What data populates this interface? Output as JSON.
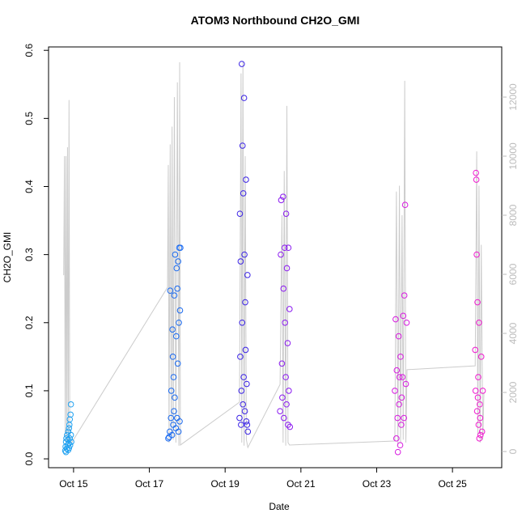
{
  "chart_data": {
    "type": "scatter",
    "title": "ATOM3 Northbound CH2O_GMI",
    "x_label": "Date",
    "y_label": "CH2O_GMI",
    "xlim": [
      14.34,
      26.3
    ],
    "ylim": [
      -0.013,
      0.605
    ],
    "y2lim": [
      -548,
      13698
    ],
    "xticks": [
      {
        "value": 15,
        "label": "Oct 15"
      },
      {
        "value": 17,
        "label": "Oct 17"
      },
      {
        "value": 19,
        "label": "Oct 19"
      },
      {
        "value": 21,
        "label": "Oct 21"
      },
      {
        "value": 23,
        "label": "Oct 23"
      },
      {
        "value": 25,
        "label": "Oct 25"
      }
    ],
    "yticks": [
      {
        "value": 0,
        "label": "0.0"
      },
      0.1,
      0.2,
      0.3,
      0.4,
      0.5,
      0.6
    ],
    "y2ticks": [
      0,
      2000,
      4000,
      6000,
      8000,
      10000,
      12000
    ],
    "y2color": "#bbbbbb",
    "series": [
      {
        "type": "line",
        "axis": "y2",
        "color": "#cccccc",
        "x": [
          14.74,
          14.76,
          14.78,
          14.8,
          14.82,
          14.84,
          14.86,
          14.88,
          14.9,
          14.95,
          17.48,
          17.5,
          17.52,
          17.55,
          17.58,
          17.6,
          17.63,
          17.66,
          17.7,
          17.74,
          17.78,
          17.8,
          17.82,
          19.38,
          19.42,
          19.44,
          19.47,
          19.5,
          19.53,
          19.56,
          19.6,
          20.45,
          20.5,
          20.53,
          20.56,
          20.6,
          20.63,
          20.66,
          20.7,
          23.48,
          23.52,
          23.56,
          23.6,
          23.63,
          23.67,
          23.7,
          23.74,
          23.77,
          23.8,
          25.6,
          25.64,
          25.67,
          25.7,
          25.73,
          25.76,
          25.8,
          25.83
        ],
        "values": [
          5970,
          10000,
          500,
          10000,
          300,
          10300,
          200,
          11900,
          400,
          300,
          5560,
          9700,
          300,
          10400,
          500,
          11000,
          400,
          12000,
          300,
          12500,
          200,
          13180,
          220,
          1670,
          12800,
          300,
          13200,
          200,
          10000,
          400,
          137,
          2270,
          8000,
          300,
          9500,
          200,
          11700,
          300,
          220,
          356,
          8800,
          200,
          9000,
          300,
          8000,
          400,
          12550,
          300,
          2770,
          2900,
          10160,
          500,
          9000,
          300,
          7000,
          400,
          2000
        ]
      },
      {
        "color": "#1ea0f0",
        "x": [
          14.78,
          14.79,
          14.8,
          14.8,
          14.81,
          14.82,
          14.83,
          14.84,
          14.85,
          14.86,
          14.86,
          14.87,
          14.88,
          14.88,
          14.89,
          14.9,
          14.9,
          14.91,
          14.92,
          14.93,
          14.93,
          14.94
        ],
        "values": [
          0.012,
          0.018,
          0.025,
          0.01,
          0.03,
          0.015,
          0.035,
          0.02,
          0.028,
          0.013,
          0.04,
          0.022,
          0.045,
          0.016,
          0.05,
          0.03,
          0.058,
          0.02,
          0.065,
          0.035,
          0.08,
          0.025
        ]
      },
      {
        "color": "#1a6af0",
        "x": [
          17.5,
          17.52,
          17.54,
          17.55,
          17.57,
          17.58,
          17.6,
          17.61,
          17.62,
          17.63,
          17.64,
          17.65,
          17.66,
          17.67,
          17.68,
          17.7,
          17.71,
          17.72,
          17.73,
          17.74,
          17.75,
          17.76,
          17.77,
          17.78,
          17.79,
          17.8,
          17.81,
          17.82
        ],
        "values": [
          0.03,
          0.032,
          0.04,
          0.247,
          0.06,
          0.1,
          0.035,
          0.19,
          0.15,
          0.05,
          0.12,
          0.07,
          0.24,
          0.09,
          0.3,
          0.045,
          0.18,
          0.28,
          0.06,
          0.25,
          0.14,
          0.29,
          0.04,
          0.2,
          0.31,
          0.055,
          0.218,
          0.31
        ]
      },
      {
        "color": "#3b23e6",
        "x": [
          19.38,
          19.39,
          19.4,
          19.41,
          19.42,
          19.43,
          19.44,
          19.45,
          19.46,
          19.47,
          19.48,
          19.49,
          19.5,
          19.51,
          19.52,
          19.53,
          19.54,
          19.55,
          19.56,
          19.57,
          19.58,
          19.59,
          19.6
        ],
        "values": [
          0.06,
          0.36,
          0.15,
          0.29,
          0.05,
          0.1,
          0.58,
          0.2,
          0.46,
          0.08,
          0.39,
          0.12,
          0.53,
          0.3,
          0.07,
          0.23,
          0.16,
          0.41,
          0.055,
          0.11,
          0.05,
          0.27,
          0.04
        ]
      },
      {
        "color": "#8b1af0",
        "x": [
          20.45,
          20.47,
          20.48,
          20.5,
          20.51,
          20.53,
          20.54,
          20.55,
          20.57,
          20.58,
          20.6,
          20.61,
          20.62,
          20.63,
          20.65,
          20.66,
          20.67,
          20.68,
          20.7,
          20.71
        ],
        "values": [
          0.07,
          0.3,
          0.38,
          0.14,
          0.09,
          0.385,
          0.25,
          0.06,
          0.31,
          0.2,
          0.12,
          0.36,
          0.08,
          0.28,
          0.17,
          0.05,
          0.31,
          0.1,
          0.22,
          0.047
        ]
      },
      {
        "color": "#d81be0",
        "x": [
          23.48,
          23.5,
          23.52,
          23.53,
          23.55,
          23.56,
          23.58,
          23.59,
          23.6,
          23.62,
          23.63,
          23.65,
          23.66,
          23.68,
          23.7,
          23.72,
          23.73,
          23.75,
          23.77,
          23.79
        ],
        "values": [
          0.1,
          0.205,
          0.03,
          0.13,
          0.06,
          0.01,
          0.18,
          0.08,
          0.12,
          0.02,
          0.15,
          0.05,
          0.09,
          0.12,
          0.21,
          0.06,
          0.24,
          0.373,
          0.11,
          0.2
        ]
      },
      {
        "color": "#f01acf",
        "x": [
          25.6,
          25.61,
          25.62,
          25.63,
          25.64,
          25.65,
          25.66,
          25.67,
          25.68,
          25.69,
          25.7,
          25.71,
          25.72,
          25.73,
          25.74,
          25.76,
          25.78,
          25.8
        ],
        "values": [
          0.16,
          0.1,
          0.42,
          0.41,
          0.3,
          0.07,
          0.23,
          0.09,
          0.12,
          0.05,
          0.2,
          0.03,
          0.08,
          0.06,
          0.035,
          0.15,
          0.04,
          0.1
        ]
      }
    ]
  }
}
